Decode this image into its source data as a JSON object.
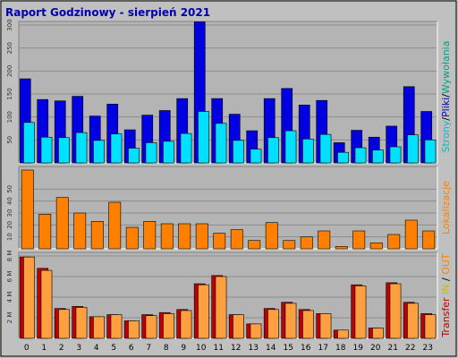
{
  "title": "Raport Godzinowy -   sierpień 2021",
  "colors": {
    "background": "#c0c0c0",
    "panel": "#b4b4b4",
    "frame": "#ffffff",
    "hits": "#0000e0",
    "files": "#00e0ff",
    "visits": "#ff8000",
    "kbin": "#ffa040",
    "kbout": "#c00000",
    "label_hits": "#00a080",
    "label_files": "#0000c0",
    "label_pages": "#00c0c0",
    "label_visits": "#ff8000",
    "label_transfer": "#c00000",
    "label_in": "#c0c000",
    "label_out": "#ff8000"
  },
  "side_labels": {
    "top": [
      {
        "text": "Strony",
        "color": "#00c0c0"
      },
      {
        "text": "/",
        "color": "#000000"
      },
      {
        "text": "Pliki",
        "color": "#0000c0"
      },
      {
        "text": "/",
        "color": "#000000"
      },
      {
        "text": "Wywołania",
        "color": "#00a080"
      }
    ],
    "mid": [
      {
        "text": "Lokalizacje",
        "color": "#ff8000"
      }
    ],
    "bot": [
      {
        "text": "Transfer",
        "color": "#c00000"
      },
      {
        "text": " ",
        "color": "#000000"
      },
      {
        "text": "IN",
        "color": "#c0c000"
      },
      {
        "text": " / ",
        "color": "#000000"
      },
      {
        "text": "OUT",
        "color": "#ff8000"
      }
    ]
  },
  "chart_data": {
    "type": "bar",
    "categories": [
      "0",
      "1",
      "2",
      "3",
      "4",
      "5",
      "6",
      "7",
      "8",
      "9",
      "10",
      "11",
      "12",
      "13",
      "14",
      "15",
      "16",
      "17",
      "18",
      "19",
      "20",
      "21",
      "22",
      "23"
    ],
    "panels": [
      {
        "name": "top",
        "ylim": [
          0,
          300
        ],
        "ticks": [
          50,
          100,
          150,
          200,
          250,
          300
        ],
        "series": [
          {
            "values": [
              183,
              138,
              135,
              145,
              102,
              128,
              72,
              104,
              114,
              140,
              307,
              140,
              106,
              70,
              140,
              162,
              126,
              136,
              44,
              71,
              56,
              80,
              166,
              112
            ]
          },
          {
            "values": [
              88,
              56,
              55,
              66,
              49,
              63,
              32,
              44,
              47,
              64,
              112,
              86,
              49,
              30,
              55,
              70,
              52,
              62,
              23,
              33,
              28,
              35,
              61,
              50
            ]
          }
        ]
      },
      {
        "name": "visits",
        "ylim": [
          0,
          66
        ],
        "ticks": [
          10,
          20,
          30,
          40,
          50
        ],
        "series": [
          {
            "values": [
              66,
              29,
              43,
              30,
              23,
              39,
              18,
              23,
              21,
              21,
              21,
              13,
              16,
              7,
              22,
              7,
              10,
              15,
              2,
              15,
              5,
              12,
              24,
              15
            ]
          }
        ]
      },
      {
        "name": "transfer",
        "ylim": [
          0,
          8
        ],
        "ticks": [
          2,
          4,
          6,
          8
        ],
        "tick_labels": [
          "2 M",
          "4 M",
          "6 M",
          "8 M"
        ],
        "series": [
          {
            "values": [
              7.9,
              6.8,
              2.9,
              3.1,
              2.1,
              2.3,
              1.7,
              2.3,
              2.5,
              2.8,
              5.3,
              6.1,
              2.3,
              1.4,
              2.9,
              3.5,
              2.8,
              2.4,
              0.8,
              5.2,
              1.0,
              5.4,
              3.5,
              2.4
            ]
          },
          {
            "values": [
              7.9,
              6.6,
              2.8,
              3.0,
              2.1,
              2.3,
              1.7,
              2.2,
              2.4,
              2.7,
              5.2,
              6.0,
              2.3,
              1.4,
              2.8,
              3.4,
              2.7,
              2.4,
              0.8,
              5.1,
              1.0,
              5.3,
              3.4,
              2.3
            ]
          }
        ]
      }
    ]
  }
}
